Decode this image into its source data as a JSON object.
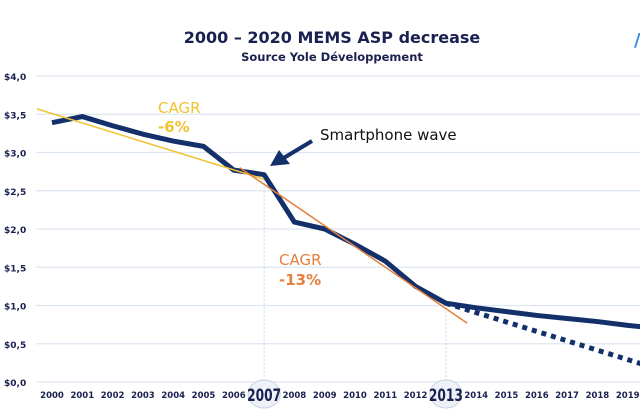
{
  "chart_data": {
    "type": "line",
    "title": "2000 – 2020 MEMS ASP decrease",
    "subtitle": "Source Yole Développement",
    "xlabel": "",
    "ylabel": "",
    "ylim": [
      0,
      4
    ],
    "y_ticks": [
      "$4,0",
      "$3,5",
      "$3,0",
      "$2,5",
      "$2,0",
      "$1,5",
      "$1,0",
      "$0,5",
      "$0,0"
    ],
    "y_tick_values": [
      4,
      3.5,
      3,
      2.5,
      2,
      1.5,
      1,
      0.5,
      0
    ],
    "x_ticks": [
      "2000",
      "2001",
      "2002",
      "2003",
      "2004",
      "2005",
      "2006",
      "2007",
      "2008",
      "2009",
      "2010",
      "2011",
      "2012",
      "2013",
      "2014",
      "2015",
      "2016",
      "2017",
      "2018",
      "2019"
    ],
    "highlighted_years": [
      "2007",
      "2013"
    ],
    "grid": true,
    "series": [
      {
        "style": "solid",
        "color": "#13306b",
        "x": [
          2000,
          2001,
          2002,
          2003,
          2004,
          2005,
          2006,
          2007,
          2008,
          2009,
          2010,
          2011,
          2012,
          2013,
          2014,
          2015,
          2016,
          2017,
          2018,
          2019,
          2020
        ],
        "y": [
          3.39,
          3.47,
          3.35,
          3.24,
          3.15,
          3.08,
          2.77,
          2.71,
          2.09,
          2.0,
          1.8,
          1.58,
          1.25,
          1.03,
          0.97,
          0.92,
          0.87,
          0.83,
          0.79,
          0.74,
          0.7
        ]
      },
      {
        "style": "dotted",
        "color": "#13306b",
        "x": [
          2013,
          2020
        ],
        "y": [
          1.03,
          0.17
        ]
      },
      {
        "style": "trend",
        "color": "#f2c231",
        "x": [
          1999.5,
          2007
        ],
        "y": [
          3.57,
          2.65
        ]
      },
      {
        "style": "trend",
        "color": "#e47f3c",
        "x": [
          2006.2,
          2013.7
        ],
        "y": [
          2.8,
          0.77
        ]
      }
    ],
    "annotations": [
      {
        "id": "cagr1",
        "line1": "CAGR",
        "line2": "-6%",
        "color": "#f2c231"
      },
      {
        "id": "cagr2",
        "line1": "CAGR",
        "line2": "-13%",
        "color": "#e47f3c"
      },
      {
        "id": "wave",
        "text": "Smartphone wave",
        "color": "#111111"
      }
    ]
  }
}
